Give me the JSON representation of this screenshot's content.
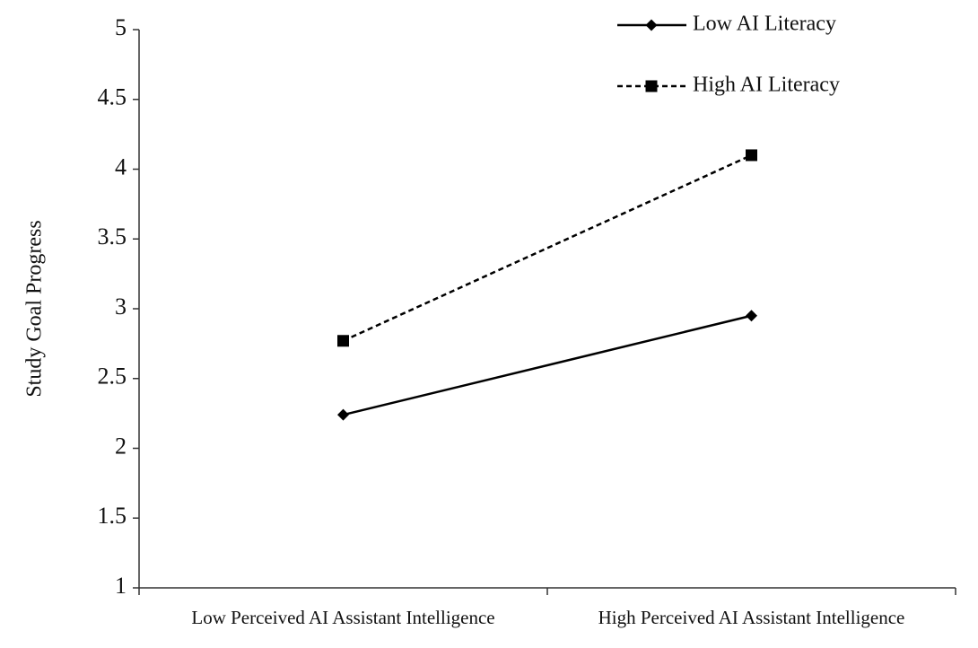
{
  "chart_data": {
    "type": "line",
    "y_label": "Study Goal Progress",
    "categories": [
      "Low Perceived AI Assistant Intelligence",
      "High Perceived AI Assistant Intelligence"
    ],
    "series": [
      {
        "name": "Low AI Literacy",
        "color": "#000000",
        "linestyle": "solid",
        "marker": "diamond",
        "values": [
          2.24,
          2.95
        ]
      },
      {
        "name": "High AI Literacy",
        "color": "#000000",
        "linestyle": "dashed",
        "marker": "square",
        "values": [
          2.77,
          4.1
        ]
      }
    ],
    "ylim": [
      1,
      5
    ],
    "yticks": [
      1,
      1.5,
      2,
      2.5,
      3,
      3.5,
      4,
      4.5,
      5
    ],
    "grid": false,
    "legend": "upper right"
  }
}
